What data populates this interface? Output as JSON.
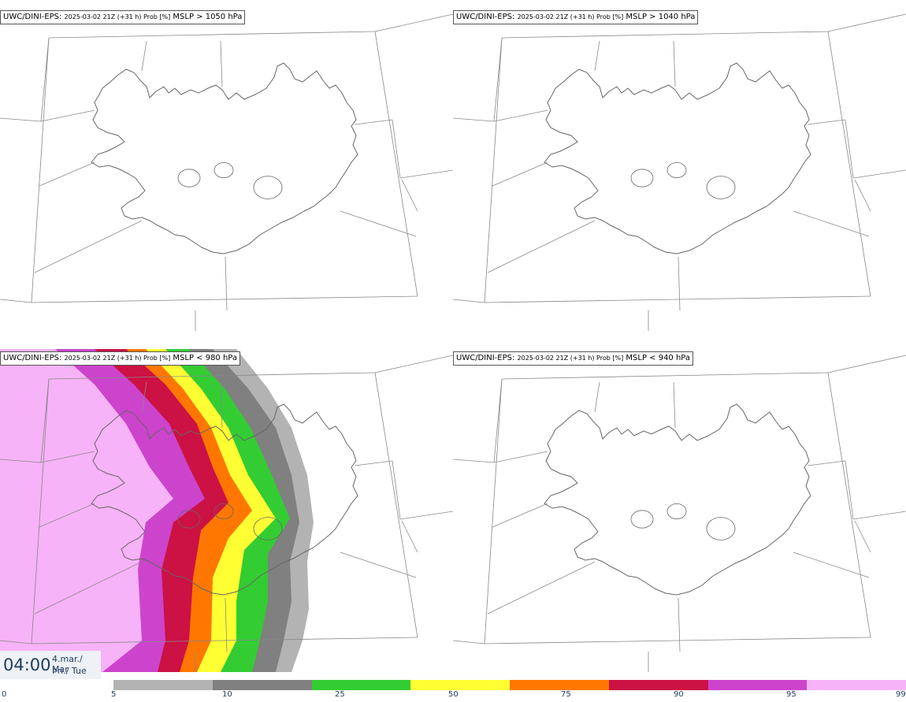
{
  "panels": [
    {
      "source": "UWC/DINI-EPS",
      "run": "2025-03-02 21Z (+31 h) Prob [%]",
      "var": "MSLP > 1050 hPa"
    },
    {
      "source": "UWC/DINI-EPS",
      "run": "2025-03-02 21Z (+31 h) Prob [%]",
      "var": "MSLP > 1040 hPa"
    },
    {
      "source": "UWC/DINI-EPS",
      "run": "2025-03-02 21Z (+31 h) Prob [%]",
      "var": "MSLP < 980 hPa"
    },
    {
      "source": "UWC/DINI-EPS",
      "run": "2025-03-02 21Z (+31 h) Prob [%]",
      "var": "MSLP < 940 hPa"
    }
  ],
  "valid_time": {
    "hour": "04:00",
    "date_line1": "4.mar./ Mar",
    "date_line2": "Þri./ Tue"
  },
  "colorbar": {
    "ticks": [
      "0",
      "5",
      "10",
      "25",
      "50",
      "75",
      "90",
      "95",
      "99"
    ],
    "colors": [
      "#b3b3b3",
      "#808080",
      "#33cc33",
      "#ffff33",
      "#ff7700",
      "#cc1144",
      "#cc44cc",
      "#f7b3f7"
    ]
  },
  "colors": {
    "coast": "#666666",
    "grid": "#888888",
    "title_border": "#555555",
    "time_text": "#1f3b5c"
  }
}
